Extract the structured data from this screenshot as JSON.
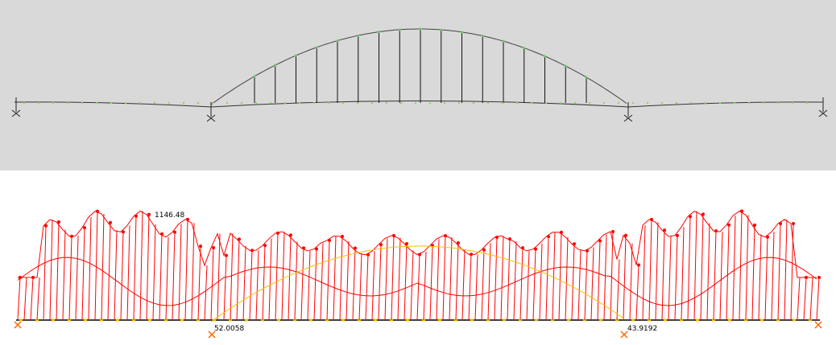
{
  "annotations": {
    "max_label": "1146.48",
    "left_support_label": "52.0058",
    "right_support_label": "43.9192"
  }
}
